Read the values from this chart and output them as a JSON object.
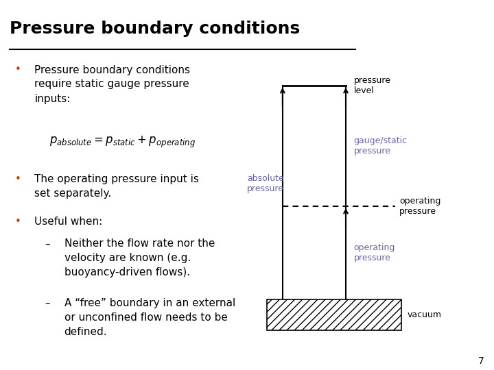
{
  "title": "Pressure boundary conditions",
  "bg_color": "#ffffff",
  "text_color": "#000000",
  "diagram_color": "#6666aa",
  "bullet_color": "#cc4400",
  "title_fontsize": 18,
  "body_fontsize": 11,
  "diagram_fontsize": 9,
  "formula_text": "$p_{absolute} = p_{static} + p_{operating}$",
  "diagram_labels": {
    "pressure_level": "pressure\nlevel",
    "gauge_static": "gauge/static\npressure",
    "absolute_pressure": "absolute\npressure",
    "operating_right": "operating\npressure",
    "operating_center": "operating\npressure",
    "vacuum": "vacuum"
  },
  "page_number": "7"
}
